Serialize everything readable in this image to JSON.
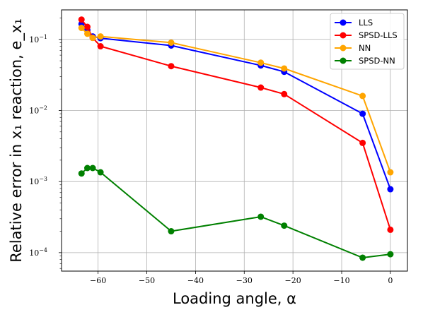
{
  "chart_data": {
    "type": "line",
    "xlabel": "Loading angle, α",
    "ylabel": "Relative error in x₁ reaction, e_x₁",
    "xlim": [
      -67.5,
      3.5
    ],
    "ylim": [
      5.5e-05,
      0.26
    ],
    "yscale": "log",
    "grid": true,
    "legend_position": "top-right",
    "x_ticks": [
      -60,
      -50,
      -40,
      -30,
      -20,
      -10,
      0
    ],
    "x_tick_labels": [
      "−60",
      "−50",
      "−40",
      "−30",
      "−20",
      "−10",
      "0"
    ],
    "y_ticks": [
      0.1,
      0.01,
      0.001,
      0.0001
    ],
    "y_tick_labels": [
      {
        "base": "10",
        "exp": "−1"
      },
      {
        "base": "10",
        "exp": "−2"
      },
      {
        "base": "10",
        "exp": "−3"
      },
      {
        "base": "10",
        "exp": "−4"
      }
    ],
    "x": [
      -63.4,
      -62.2,
      -61.1,
      -59.5,
      -45.0,
      -26.6,
      -21.8,
      -5.7,
      0.0
    ],
    "series": [
      {
        "name": "LLS",
        "color": "#0000ff",
        "values": [
          0.165,
          0.135,
          0.11,
          0.104,
          0.082,
          0.043,
          0.035,
          0.009,
          0.00078
        ]
      },
      {
        "name": "SPSD-LLS",
        "color": "#ff0000",
        "values": [
          0.19,
          0.15,
          0.105,
          0.08,
          0.042,
          0.021,
          0.017,
          0.0035,
          0.00021
        ]
      },
      {
        "name": "NN",
        "color": "#ffa500",
        "values": [
          0.145,
          0.12,
          0.105,
          0.11,
          0.09,
          0.047,
          0.039,
          0.016,
          0.00135
        ]
      },
      {
        "name": "SPSD-NN",
        "color": "#008000",
        "values": [
          0.0013,
          0.00155,
          0.00155,
          0.00135,
          0.0002,
          0.00032,
          0.00024,
          8.5e-05,
          9.5e-05
        ]
      }
    ]
  }
}
